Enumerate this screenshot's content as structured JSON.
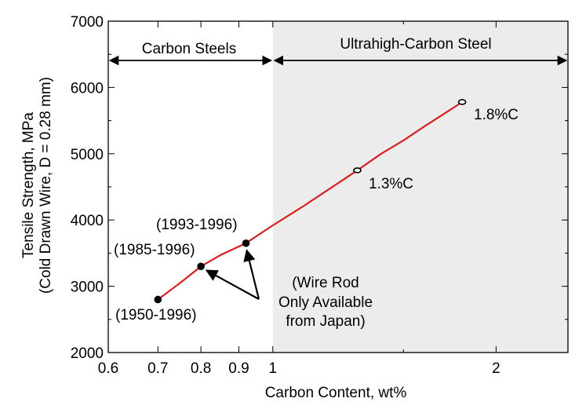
{
  "chart_data": {
    "type": "line",
    "title": "",
    "xlabel": "Carbon Content, wt%",
    "ylabel_line1": "Tensile Strength, MPa",
    "ylabel_line2": "(Cold Drawn Wire, D = 0.28 mm)",
    "x_scale": "log",
    "xlim": [
      0.6,
      2.5
    ],
    "ylim": [
      2000,
      7000
    ],
    "x_ticks": [
      0.6,
      0.7,
      0.8,
      0.9,
      1,
      2
    ],
    "x_tick_labels": [
      "0.6",
      "0.7",
      "0.8",
      "0.9",
      "1",
      "2"
    ],
    "y_ticks": [
      2000,
      3000,
      4000,
      5000,
      6000,
      7000
    ],
    "y_tick_labels": [
      "2000",
      "3000",
      "4000",
      "5000",
      "6000",
      "7000"
    ],
    "grid": false,
    "series": [
      {
        "color": "#d62020",
        "x": [
          0.7,
          0.75,
          0.8,
          0.85,
          0.92,
          1.0,
          1.1,
          1.2,
          1.3,
          1.4,
          1.5,
          1.6,
          1.7,
          1.8
        ],
        "y": [
          2800,
          3050,
          3300,
          3470,
          3650,
          3920,
          4210,
          4490,
          4750,
          5000,
          5200,
          5410,
          5600,
          5780
        ]
      }
    ],
    "markers": [
      {
        "x": 0.7,
        "y": 2800,
        "style": "filled"
      },
      {
        "x": 0.8,
        "y": 3300,
        "style": "filled"
      },
      {
        "x": 0.92,
        "y": 3650,
        "style": "filled"
      },
      {
        "x": 1.3,
        "y": 4750,
        "style": "open"
      },
      {
        "x": 1.8,
        "y": 5780,
        "style": "open"
      }
    ],
    "regions": [
      {
        "label": "Carbon Steels",
        "from": 0.6,
        "to": 1.0,
        "shaded": false
      },
      {
        "label": "Ultrahigh-Carbon Steel",
        "from": 1.0,
        "to": 2.5,
        "shaded": true,
        "shade_color": "#ececec"
      }
    ],
    "annotations": {
      "label_1950": "(1950-1996)",
      "label_1985": "(1985-1996)",
      "label_1993": "(1993-1996)",
      "label_13c": "1.3%C",
      "label_18c": "1.8%C",
      "note_lines": [
        "(Wire Rod",
        "Only Available",
        "from Japan)"
      ]
    }
  }
}
